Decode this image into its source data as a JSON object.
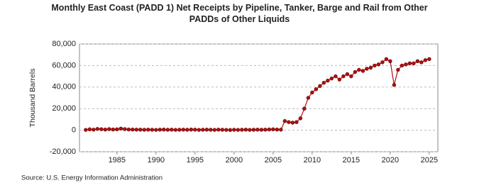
{
  "chart_data": {
    "type": "line",
    "title": "Monthly East Coast (PADD 1) Net Receipts by Pipeline, Tanker, Barge and Rail from Other PADDs of Other Liquids",
    "y_label": "Thousand Barrels",
    "source": "Source: U.S. Energy Information Administration",
    "x": [
      1981,
      1981.5,
      1982,
      1982.5,
      1983,
      1983.5,
      1984,
      1984.5,
      1985,
      1985.5,
      1986,
      1986.5,
      1987,
      1987.5,
      1988,
      1988.5,
      1989,
      1989.5,
      1990,
      1990.5,
      1991,
      1991.5,
      1992,
      1992.5,
      1993,
      1993.5,
      1994,
      1994.5,
      1995,
      1995.5,
      1996,
      1996.5,
      1997,
      1997.5,
      1998,
      1998.5,
      1999,
      1999.5,
      2000,
      2000.5,
      2001,
      2001.5,
      2002,
      2002.5,
      2003,
      2003.5,
      2004,
      2004.5,
      2005,
      2005.5,
      2006,
      2006.5,
      2007,
      2007.5,
      2008,
      2008.5,
      2009,
      2009.5,
      2010,
      2010.5,
      2011,
      2011.5,
      2012,
      2012.5,
      2013,
      2013.5,
      2014,
      2014.5,
      2015,
      2015.5,
      2016,
      2016.5,
      2017,
      2017.5,
      2018,
      2018.5,
      2019,
      2019.5,
      2020,
      2020.5,
      2021,
      2021.5,
      2022,
      2022.5,
      2023,
      2023.5,
      2024,
      2024.5,
      2025
    ],
    "series": [
      {
        "color": "#b01010",
        "values": [
          300,
          800,
          500,
          1200,
          900,
          600,
          1000,
          700,
          800,
          1500,
          1000,
          700,
          600,
          500,
          500,
          400,
          500,
          400,
          300,
          500,
          600,
          400,
          500,
          300,
          400,
          500,
          400,
          600,
          500,
          300,
          400,
          500,
          400,
          300,
          500,
          400,
          300,
          200,
          400,
          300,
          400,
          500,
          300,
          400,
          500,
          400,
          500,
          700,
          800,
          600,
          500,
          8500,
          7500,
          7000,
          7500,
          11000,
          20000,
          30000,
          35000,
          38000,
          41000,
          44000,
          46000,
          48000,
          50000,
          47000,
          50000,
          52000,
          50000,
          54000,
          56000,
          55000,
          57000,
          58000,
          60000,
          61000,
          63000,
          66000,
          64000,
          42000,
          56000,
          60000,
          61000,
          62000,
          62000,
          64000,
          63000,
          65000,
          66000
        ]
      }
    ],
    "xlim": [
      1980.2,
      2026.1
    ],
    "xticks": [
      1985,
      1990,
      1995,
      2000,
      2005,
      2010,
      2015,
      2020,
      2025
    ],
    "ylim": [
      -20000,
      80000
    ],
    "yticks": [
      {
        "value": -20000,
        "label": "-20,000"
      },
      0,
      {
        "value": 20000,
        "label": "20,000"
      },
      {
        "value": 40000,
        "label": "40,000"
      },
      {
        "value": 60000,
        "label": "60,000"
      },
      {
        "value": 80000,
        "label": "80,000"
      }
    ],
    "grid": true
  }
}
